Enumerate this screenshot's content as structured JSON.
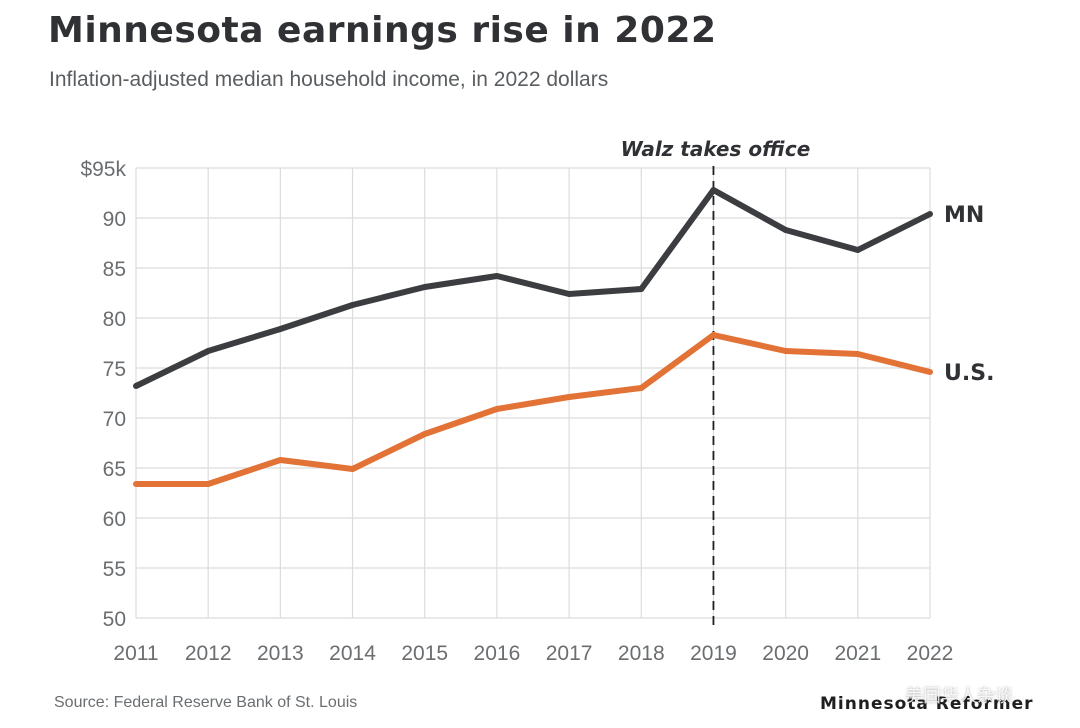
{
  "title": "Minnesota earnings rise in 2022",
  "subtitle": "Inflation-adjusted median household income, in 2022 dollars",
  "source": "Source: Federal Reserve Bank of St. Louis",
  "brand": "Minnesota Reformer",
  "watermark": "美国华人杂谈",
  "chart_data": {
    "type": "line",
    "title": "Minnesota earnings rise in 2022",
    "subtitle": "Inflation-adjusted median household income, in 2022 dollars",
    "xlabel": "",
    "ylabel": "",
    "x": [
      2011,
      2012,
      2013,
      2014,
      2015,
      2016,
      2017,
      2018,
      2019,
      2020,
      2021,
      2022
    ],
    "x_tick_labels": [
      "2011",
      "2012",
      "2013",
      "2014",
      "2015",
      "2016",
      "2017",
      "2018",
      "2019",
      "2020",
      "2021",
      "2022"
    ],
    "ylim": [
      50,
      95
    ],
    "y_ticks": [
      50,
      55,
      60,
      65,
      70,
      75,
      80,
      85,
      90,
      95
    ],
    "y_tick_labels": [
      "50",
      "55",
      "60",
      "65",
      "70",
      "75",
      "80",
      "85",
      "90",
      "$95k"
    ],
    "grid": true,
    "series": [
      {
        "name": "MN",
        "label": "MN",
        "color": "#3b3d40",
        "values": [
          73.2,
          76.7,
          78.9,
          81.3,
          83.1,
          84.2,
          82.4,
          82.9,
          92.8,
          88.8,
          86.8,
          90.4
        ]
      },
      {
        "name": "U.S.",
        "label": "U.S.",
        "color": "#e27235",
        "values": [
          63.4,
          63.4,
          65.8,
          64.9,
          68.4,
          70.9,
          72.1,
          73.0,
          78.3,
          76.7,
          76.4,
          74.6
        ]
      }
    ],
    "annotations": [
      {
        "x": 2019,
        "text": "Walz takes office",
        "style": "dashed-vertical-line"
      }
    ]
  }
}
